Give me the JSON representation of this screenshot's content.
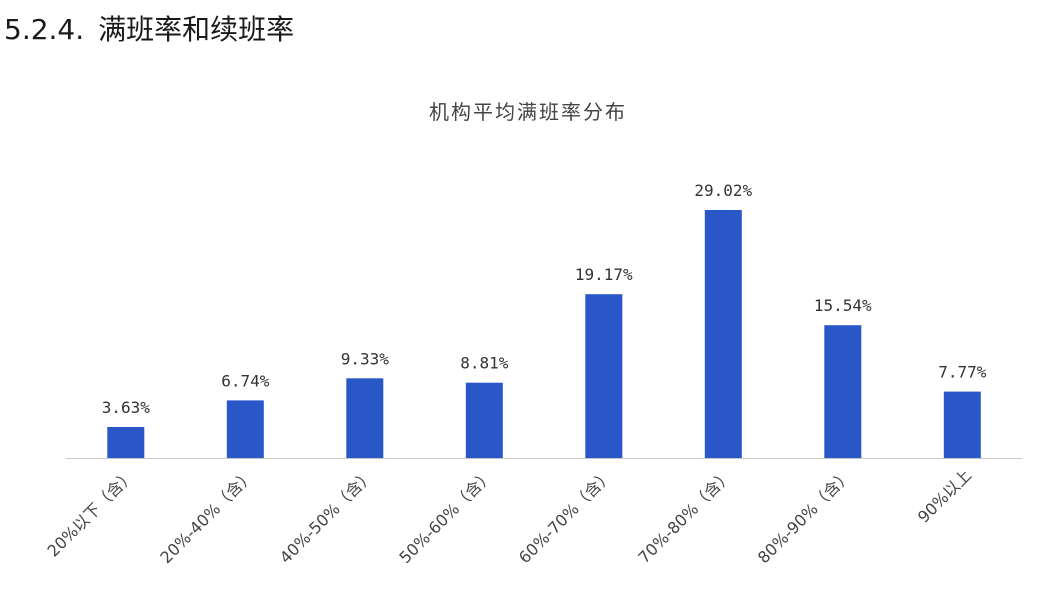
{
  "section": {
    "number": "5.2.4.",
    "title": "满班率和续班率"
  },
  "chart_data": {
    "type": "bar",
    "title": "机构平均满班率分布",
    "categories": [
      "20%以下（含）",
      "20%-40%（含）",
      "40%-50%（含）",
      "50%-60%（含）",
      "60%-70%（含）",
      "70%-80%（含）",
      "80%-90%（含）",
      "90%以上"
    ],
    "values": [
      3.63,
      6.74,
      9.33,
      8.81,
      19.17,
      29.02,
      15.54,
      7.77
    ],
    "value_labels": [
      "3.63%",
      "6.74%",
      "9.33%",
      "8.81%",
      "19.17%",
      "29.02%",
      "15.54%",
      "7.77%"
    ],
    "xlabel": "",
    "ylabel": "",
    "ylim": [
      0,
      30
    ],
    "grid": false,
    "legend": "none",
    "colors": {
      "bar": "#2957c8",
      "axis": "#c9c9c9"
    }
  }
}
